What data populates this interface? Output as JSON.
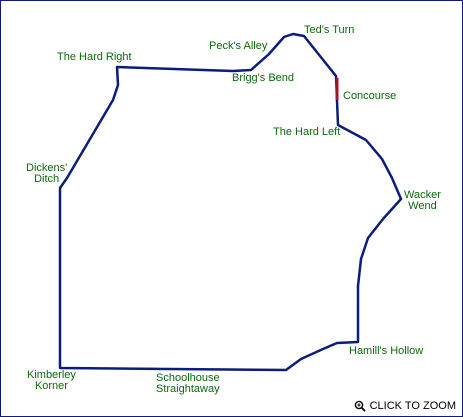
{
  "colors": {
    "track": "#0b1d7a",
    "label": "#0b6a0b",
    "highlight": "#a0142a",
    "zoom_text": "#000000"
  },
  "labels": [
    {
      "id": "label-teds-turn",
      "lines": [
        "Ted's Turn"
      ]
    },
    {
      "id": "label-pecks-alley",
      "lines": [
        "Peck's Alley"
      ]
    },
    {
      "id": "label-the-hard-right",
      "lines": [
        "The Hard Right"
      ]
    },
    {
      "id": "label-briggs-bend",
      "lines": [
        "Brigg's Bend"
      ]
    },
    {
      "id": "label-concourse",
      "lines": [
        "Concourse"
      ]
    },
    {
      "id": "label-the-hard-left",
      "lines": [
        "The Hard Left"
      ]
    },
    {
      "id": "label-dickens-ditch",
      "lines": [
        "Dickens'",
        "Ditch"
      ]
    },
    {
      "id": "label-wacker-wend",
      "lines": [
        "Wacker",
        "Wend"
      ]
    },
    {
      "id": "label-hamills-hollow",
      "lines": [
        "Hamill's Hollow"
      ]
    },
    {
      "id": "label-kimberley-korner",
      "lines": [
        "Kimberley",
        "Korner"
      ]
    },
    {
      "id": "label-schoolhouse-straightaway",
      "lines": [
        "Schoolhouse",
        "Straightaway"
      ]
    }
  ],
  "zoom": {
    "label": "CLICK TO ZOOM",
    "icon": "magnifier-icon"
  }
}
